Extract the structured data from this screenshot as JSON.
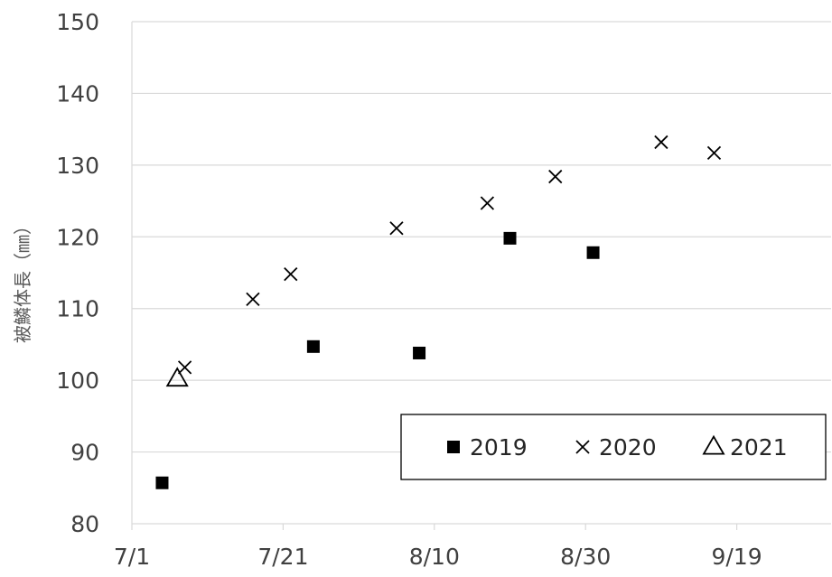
{
  "chart_data": {
    "type": "scatter",
    "ylabel": "被鱗体長（㎜）",
    "xlabel": "",
    "ylim": [
      80,
      150
    ],
    "y_ticks": [
      80,
      90,
      100,
      110,
      120,
      130,
      140,
      150
    ],
    "x_ticks": [
      "7/1",
      "7/21",
      "8/10",
      "8/30",
      "9/19"
    ],
    "xlim": [
      "7/1",
      "9/28"
    ],
    "grid": "horizontal",
    "legend_position": "bottom-right",
    "series": [
      {
        "name": "2019",
        "marker": "filled-square",
        "color": "#000000",
        "points": [
          {
            "x": "7/5",
            "y": 85.7
          },
          {
            "x": "7/25",
            "y": 104.7
          },
          {
            "x": "8/8",
            "y": 103.8
          },
          {
            "x": "8/20",
            "y": 119.8
          },
          {
            "x": "8/31",
            "y": 117.8
          }
        ]
      },
      {
        "name": "2020",
        "marker": "cross",
        "color": "#000000",
        "points": [
          {
            "x": "7/8",
            "y": 101.8
          },
          {
            "x": "7/17",
            "y": 111.3
          },
          {
            "x": "7/22",
            "y": 114.8
          },
          {
            "x": "8/5",
            "y": 121.2
          },
          {
            "x": "8/17",
            "y": 124.7
          },
          {
            "x": "8/26",
            "y": 128.4
          },
          {
            "x": "9/9",
            "y": 133.2
          },
          {
            "x": "9/16",
            "y": 131.7
          }
        ]
      },
      {
        "name": "2021",
        "marker": "open-triangle",
        "color": "#000000",
        "points": [
          {
            "x": "7/7",
            "y": 100.2
          }
        ]
      }
    ]
  }
}
